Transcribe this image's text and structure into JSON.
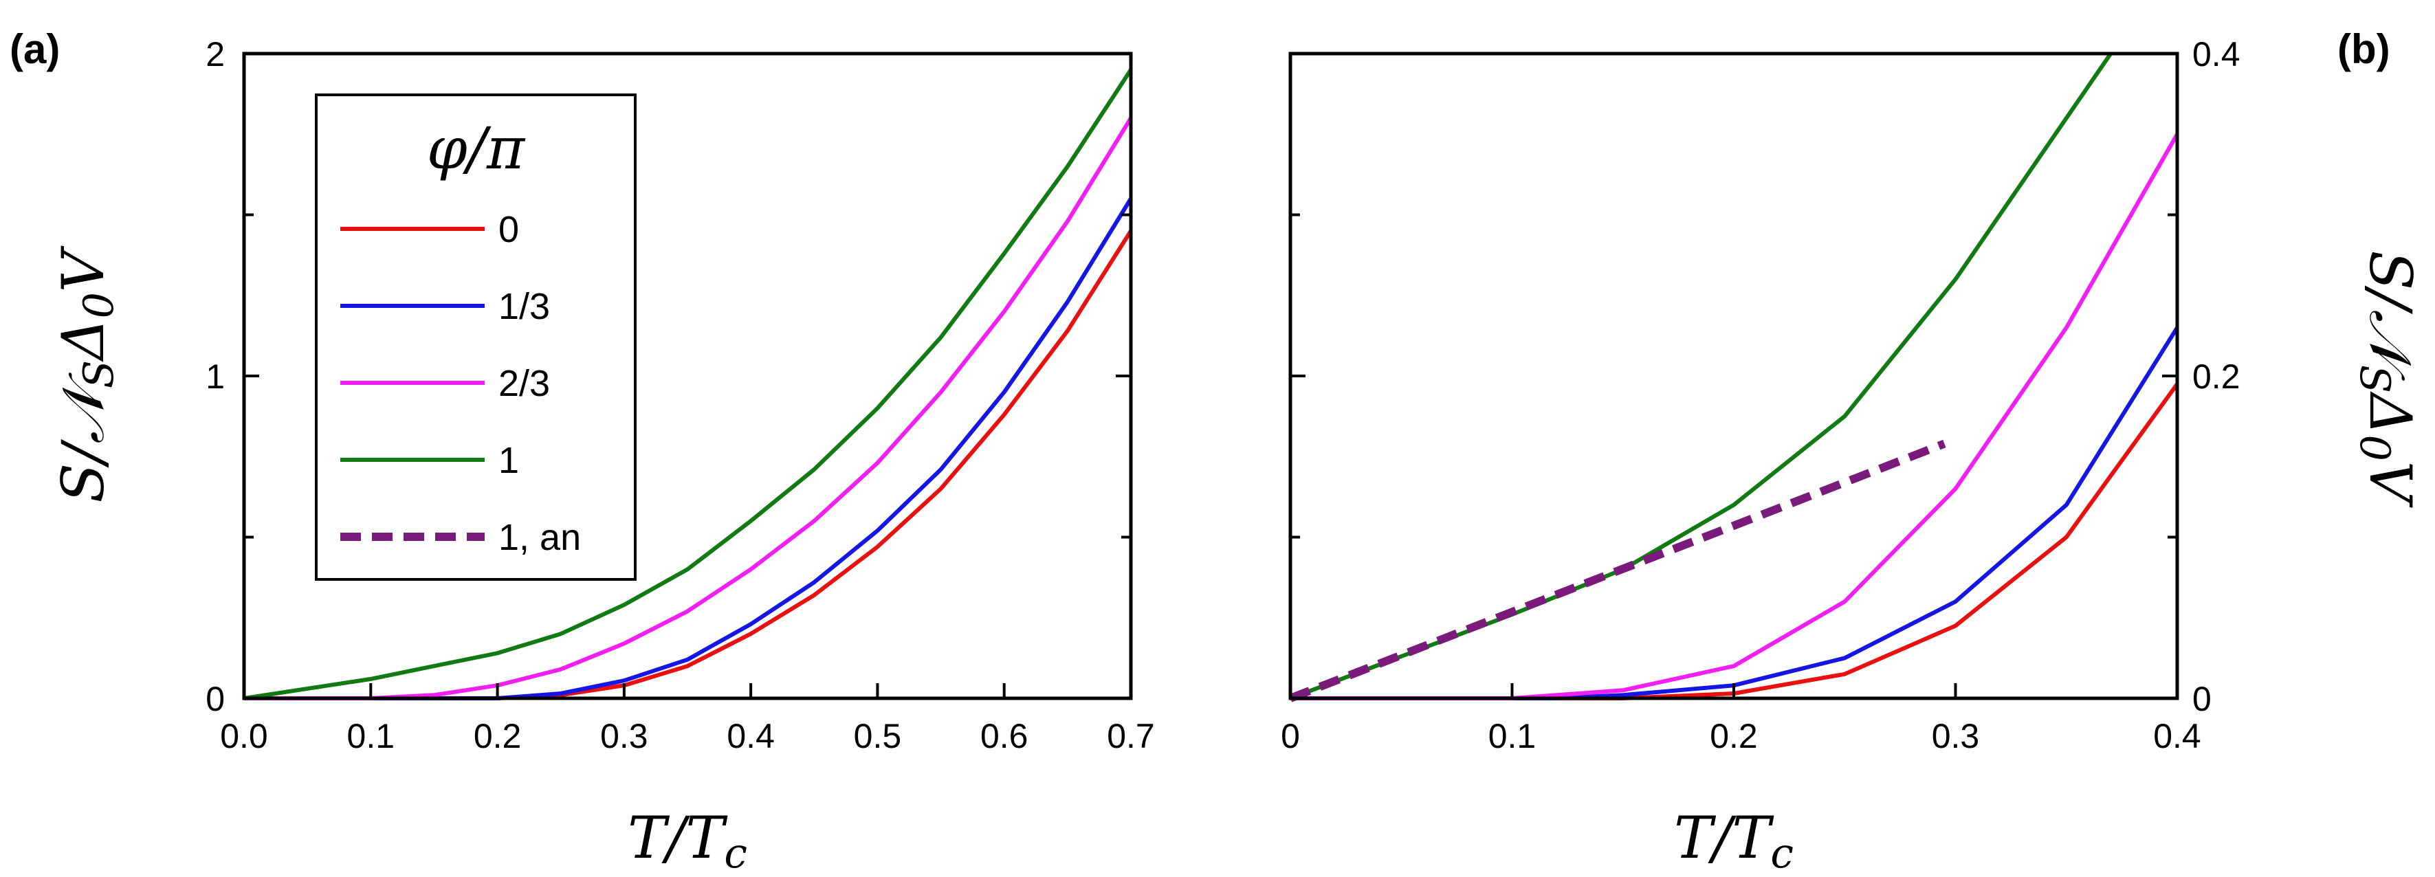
{
  "chart_data": [
    {
      "panel": "(a)",
      "type": "line",
      "xlabel": "T/T_c",
      "ylabel": "S/𝒩_S Δ_0 V",
      "xlim": [
        0.0,
        0.7
      ],
      "ylim": [
        0,
        2
      ],
      "xticks": [
        "0.0",
        "0.1",
        "0.2",
        "0.3",
        "0.4",
        "0.5",
        "0.6",
        "0.7"
      ],
      "yticks": [
        "0",
        "1",
        "2"
      ],
      "grid": false,
      "legend": {
        "title": "φ/π",
        "placement": "top-left",
        "entries": [
          {
            "label": "0",
            "color": "#e8110f",
            "dash": false
          },
          {
            "label": "1/3",
            "color": "#1515e6",
            "dash": false
          },
          {
            "label": "2/3",
            "color": "#f21ff2",
            "dash": false
          },
          {
            "label": "1",
            "color": "#127a12",
            "dash": false
          },
          {
            "label": "1, an",
            "color": "#7a1a7a",
            "dash": true
          }
        ]
      },
      "series": [
        {
          "name": "0",
          "color": "#e8110f",
          "x": [
            0,
            0.2,
            0.25,
            0.3,
            0.35,
            0.4,
            0.45,
            0.5,
            0.55,
            0.6,
            0.65,
            0.7
          ],
          "y": [
            0,
            0.0,
            0.01,
            0.04,
            0.1,
            0.2,
            0.32,
            0.47,
            0.65,
            0.88,
            1.14,
            1.45
          ]
        },
        {
          "name": "1/3",
          "color": "#1515e6",
          "x": [
            0,
            0.2,
            0.25,
            0.3,
            0.35,
            0.4,
            0.45,
            0.5,
            0.55,
            0.6,
            0.65,
            0.7
          ],
          "y": [
            0,
            0.0,
            0.015,
            0.055,
            0.12,
            0.23,
            0.36,
            0.52,
            0.71,
            0.95,
            1.23,
            1.55
          ]
        },
        {
          "name": "2/3",
          "color": "#f21ff2",
          "x": [
            0,
            0.1,
            0.15,
            0.2,
            0.25,
            0.3,
            0.35,
            0.4,
            0.45,
            0.5,
            0.55,
            0.6,
            0.65,
            0.7
          ],
          "y": [
            0,
            0.0,
            0.01,
            0.04,
            0.09,
            0.17,
            0.27,
            0.4,
            0.55,
            0.73,
            0.95,
            1.2,
            1.48,
            1.8
          ]
        },
        {
          "name": "1",
          "color": "#127a12",
          "x": [
            0,
            0.1,
            0.15,
            0.2,
            0.25,
            0.3,
            0.35,
            0.4,
            0.45,
            0.5,
            0.55,
            0.6,
            0.65,
            0.7
          ],
          "y": [
            0,
            0.06,
            0.1,
            0.14,
            0.2,
            0.29,
            0.4,
            0.55,
            0.71,
            0.9,
            1.12,
            1.38,
            1.65,
            1.95
          ]
        }
      ]
    },
    {
      "panel": "(b)",
      "type": "line",
      "xlabel": "T/T_c",
      "ylabel": "S/𝒩_S Δ_0 V",
      "ylabel_side": "right",
      "xlim": [
        0,
        0.4
      ],
      "ylim": [
        0,
        0.4
      ],
      "xticks": [
        "0",
        "0.1",
        "0.2",
        "0.3",
        "0.4"
      ],
      "yticks": [
        "0",
        "0.2",
        "0.4"
      ],
      "grid": false,
      "series": [
        {
          "name": "0",
          "color": "#e8110f",
          "dash": false,
          "x": [
            0,
            0.15,
            0.2,
            0.25,
            0.3,
            0.35,
            0.4
          ],
          "y": [
            0,
            0.0,
            0.003,
            0.015,
            0.045,
            0.1,
            0.195
          ]
        },
        {
          "name": "1/3",
          "color": "#1515e6",
          "dash": false,
          "x": [
            0,
            0.12,
            0.15,
            0.2,
            0.25,
            0.3,
            0.35,
            0.4
          ],
          "y": [
            0,
            0.0,
            0.002,
            0.008,
            0.025,
            0.06,
            0.12,
            0.23
          ]
        },
        {
          "name": "2/3",
          "color": "#f21ff2",
          "dash": false,
          "x": [
            0,
            0.1,
            0.15,
            0.2,
            0.25,
            0.3,
            0.35,
            0.4
          ],
          "y": [
            0,
            0.0,
            0.005,
            0.02,
            0.06,
            0.13,
            0.23,
            0.35
          ]
        },
        {
          "name": "1",
          "color": "#127a12",
          "dash": false,
          "x": [
            0,
            0.05,
            0.1,
            0.15,
            0.2,
            0.25,
            0.3,
            0.35,
            0.37
          ],
          "y": [
            0,
            0.026,
            0.052,
            0.08,
            0.12,
            0.175,
            0.26,
            0.36,
            0.4
          ]
        },
        {
          "name": "1, an",
          "color": "#7a1a7a",
          "dash": true,
          "x": [
            0,
            0.295
          ],
          "y": [
            0,
            0.158
          ]
        }
      ]
    }
  ]
}
